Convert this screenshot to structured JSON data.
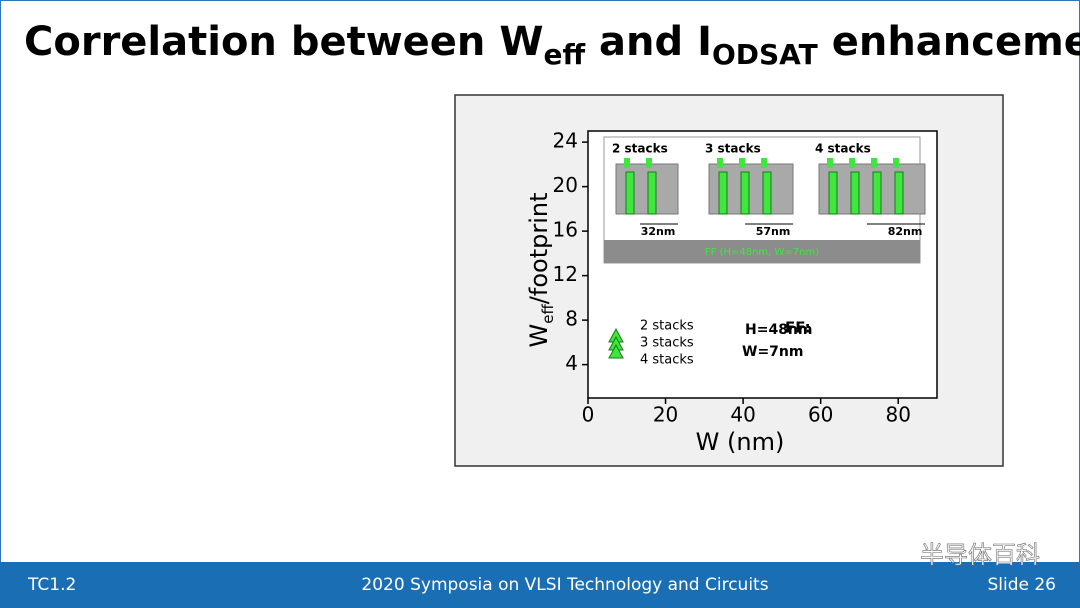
{
  "slide": {
    "title": [
      "Correlation between W",
      "eff",
      " and I",
      "ODSAT",
      " enhancement"
    ],
    "footer": {
      "left": "TC1.2",
      "center": "2020 Symposia on VLSI Technology and Circuits",
      "right": "Slide 26",
      "watermark": "半导体百科"
    }
  },
  "chart_data": {
    "type": "scatter",
    "xlabel": "W (nm)",
    "ylabel": [
      "W",
      "eff",
      "/footprint"
    ],
    "xlim": [
      0,
      90
    ],
    "xticks": [
      0,
      20,
      40,
      60,
      80
    ],
    "ylim": [
      1,
      25
    ],
    "yticks": [
      4,
      8,
      12,
      16,
      20,
      24
    ],
    "series": [
      {
        "name": "2 stacks",
        "color": "#3ee63e",
        "x": [],
        "values": []
      },
      {
        "name": "3 stacks",
        "color": "#3ee63e",
        "x": [],
        "values": []
      },
      {
        "name": "4 stacks",
        "color": "#3ee63e",
        "x": [],
        "values": []
      }
    ],
    "annotation": {
      "head": "FF:",
      "lines": [
        "H=48nm",
        "W=7nm"
      ]
    },
    "inset": {
      "groups": [
        {
          "label": "2 stacks",
          "width": "32nm"
        },
        {
          "label": "3 stacks",
          "width": "57nm"
        },
        {
          "label": "4 stacks",
          "width": "82nm"
        }
      ],
      "base": "FF (H=48nm, W=7nm)"
    }
  }
}
